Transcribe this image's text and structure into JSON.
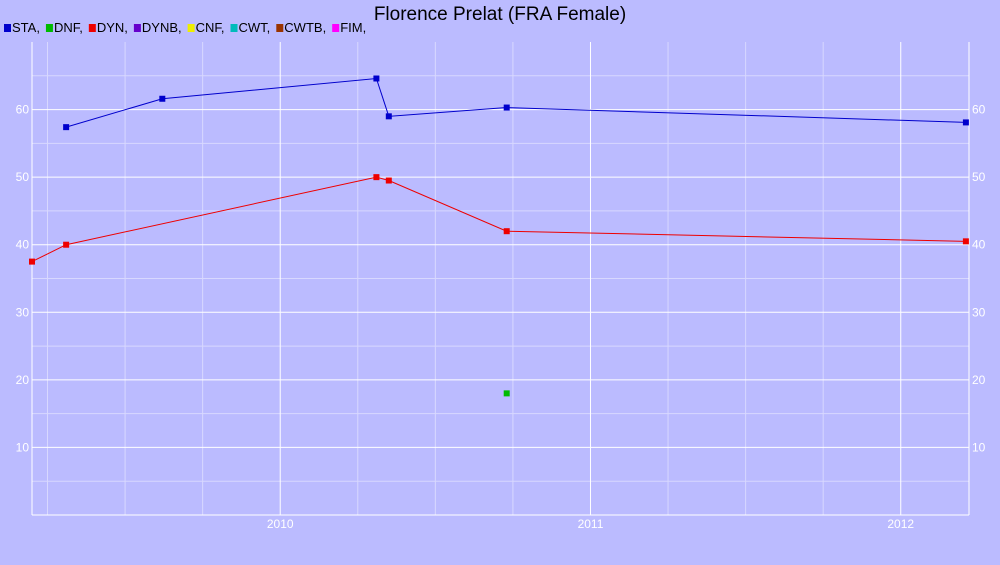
{
  "chart_data": {
    "type": "line",
    "title": "Florence Prelat (FRA Female)",
    "xlabel": "",
    "ylabel": "",
    "x_range": [
      2009.2,
      2012.22
    ],
    "ylim": [
      0,
      70
    ],
    "y_ticks": [
      10,
      20,
      30,
      40,
      50,
      60
    ],
    "x_ticks": [
      2010,
      2011,
      2012
    ],
    "x_minor_ticks": [
      2009.25,
      2009.5,
      2009.75,
      2010.25,
      2010.5,
      2010.75,
      2011.25,
      2011.5,
      2011.75
    ],
    "grid": true,
    "legend_position": "top-left",
    "legend": [
      {
        "name": "STA,",
        "color": "#0000cc"
      },
      {
        "name": "DNF,",
        "color": "#00bb00"
      },
      {
        "name": "DYN,",
        "color": "#ee0000"
      },
      {
        "name": "DYNB,",
        "color": "#6600cc"
      },
      {
        "name": "CNF,",
        "color": "#eeee00"
      },
      {
        "name": "CWT,",
        "color": "#00bbbb"
      },
      {
        "name": "CWTB,",
        "color": "#993300"
      },
      {
        "name": "FIM,",
        "color": "#ff00ff"
      }
    ],
    "series": [
      {
        "key": "STA",
        "color": "#0000cc",
        "points": [
          [
            2009.31,
            57.4
          ],
          [
            2009.62,
            61.6
          ],
          [
            2010.31,
            64.6
          ],
          [
            2010.35,
            59.0
          ],
          [
            2010.73,
            60.3
          ],
          [
            2012.21,
            58.1
          ]
        ]
      },
      {
        "key": "DNF",
        "color": "#00bb00",
        "points": [
          [
            2010.73,
            18.0
          ]
        ]
      },
      {
        "key": "DYN",
        "color": "#ee0000",
        "points": [
          [
            2009.2,
            37.5
          ],
          [
            2009.31,
            40.0
          ],
          [
            2010.31,
            50.0
          ],
          [
            2010.35,
            49.5
          ],
          [
            2010.73,
            42.0
          ],
          [
            2012.21,
            40.5
          ]
        ]
      }
    ]
  }
}
